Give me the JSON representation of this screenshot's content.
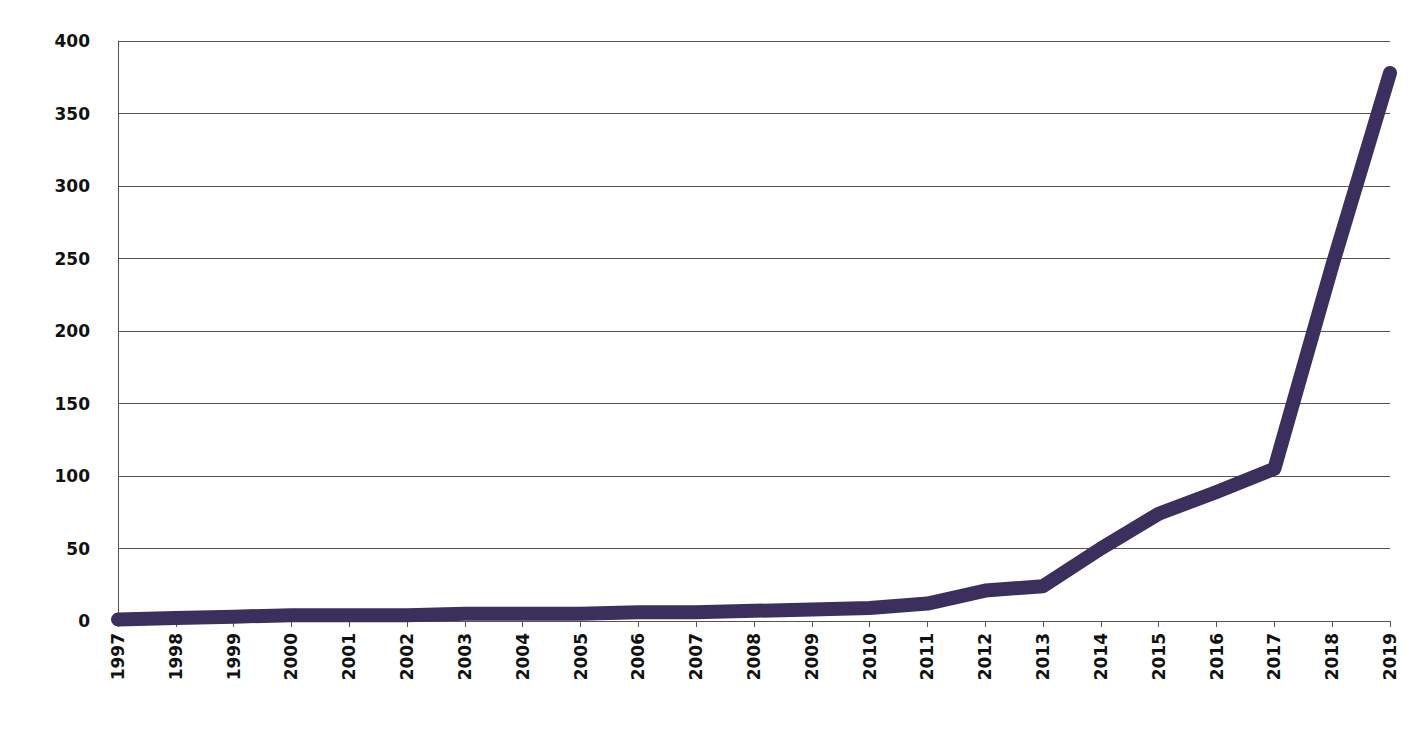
{
  "chart_data": {
    "type": "line",
    "categories": [
      "1997",
      "1998",
      "1999",
      "2000",
      "2001",
      "2002",
      "2003",
      "2004",
      "2005",
      "2006",
      "2007",
      "2008",
      "2009",
      "2010",
      "2011",
      "2012",
      "2013",
      "2014",
      "2015",
      "2016",
      "2017",
      "2018",
      "2019"
    ],
    "values": [
      1,
      2,
      3,
      4,
      4,
      4,
      5,
      5,
      5,
      6,
      6,
      7,
      8,
      9,
      12,
      21,
      24,
      50,
      74,
      89,
      105,
      245,
      378
    ],
    "color": "#3b2f5e",
    "ylim": [
      0,
      400
    ],
    "yticks": [
      0,
      50,
      100,
      150,
      200,
      250,
      300,
      350,
      400
    ],
    "grid": true
  }
}
